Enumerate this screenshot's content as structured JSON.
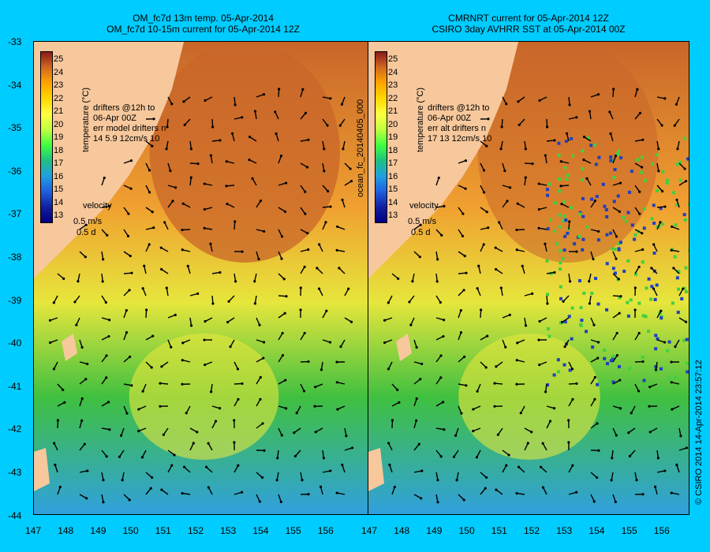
{
  "left_panel": {
    "title_line1": "OM_fc7d 13m temp. 05-Apr-2014",
    "title_line2": "OM_fc7d 10-15m current for 05-Apr-2014 12Z",
    "legend_drifters": "drifters @12h to\n06-Apr 00Z\nerr model drifters n\n14 5.9 12cm/s 10",
    "velocity_label": "velocity",
    "velocity_scale": "0.5 m/s",
    "velocity_time": "0.5 d"
  },
  "right_panel": {
    "title_line1": "CMRNRT current for 05-Apr-2014 12Z",
    "title_line2": "CSIRO 3day AVHRR SST at 05-Apr-2014 00Z",
    "legend_drifters": "drifters @12h to\n06-Apr 00Z\nerr alt drifters n\n17 13 12cm/s 10",
    "velocity_label": "velocity",
    "velocity_scale": "0.5 m/s",
    "velocity_time": "0.5 d"
  },
  "colorbar": {
    "title": "temperature (°C)",
    "ticks": [
      "25",
      "24",
      "23",
      "22",
      "21",
      "20",
      "19",
      "18",
      "17",
      "16",
      "15",
      "14",
      "13"
    ]
  },
  "axes": {
    "lon_ticks": [
      "147",
      "148",
      "149",
      "150",
      "151",
      "152",
      "153",
      "154",
      "155",
      "156"
    ],
    "lat_ticks": [
      "-33",
      "-34",
      "-35",
      "-36",
      "-37",
      "-38",
      "-39",
      "-40",
      "-41",
      "-42",
      "-43",
      "-44"
    ]
  },
  "side_labels": {
    "middle": "ocean_fc_20140405_000",
    "right": "© CSIRO 2014   14-Apr-2014 23:57:12"
  },
  "colors": {
    "land": "#f7c89c",
    "background": "#00ccff",
    "warm": "#c8662a",
    "mid": "#f0a030",
    "cool": "#e6e63c",
    "green": "#40c040",
    "cold": "#30a0e0"
  }
}
